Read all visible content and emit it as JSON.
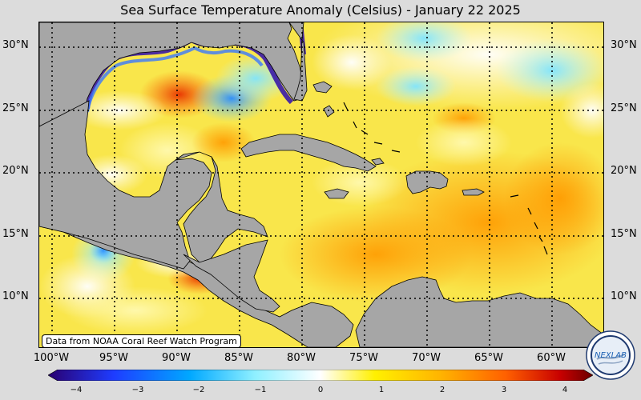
{
  "title": "Sea Surface Temperature Anomaly (Celsius) - January 22 2025",
  "credit": "Data from NOAA Coral Reef Watch Program",
  "logo_text": "NEXLAB",
  "lat_labels": [
    "30°N",
    "25°N",
    "20°N",
    "15°N",
    "10°N"
  ],
  "lon_labels": [
    "100°W",
    "95°W",
    "90°W",
    "85°W",
    "80°W",
    "75°W",
    "70°W",
    "65°W",
    "60°W"
  ],
  "colorbar": {
    "ticks": [
      "−4",
      "−3",
      "−2",
      "−1",
      "0",
      "1",
      "2",
      "3",
      "4"
    ],
    "colors": [
      "#2a0070",
      "#1e3cff",
      "#00a8ff",
      "#8ff0ff",
      "#ffffff",
      "#fff000",
      "#ffb400",
      "#ff6000",
      "#c80000",
      "#6a0000"
    ]
  },
  "colors": {
    "land": "#a6a6a6",
    "ocean_base": "#f9e64b"
  }
}
